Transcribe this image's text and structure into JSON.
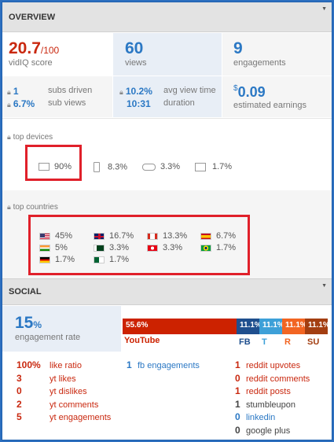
{
  "overview": {
    "header": "OVERVIEW",
    "vidiq_score": {
      "value": "20.7",
      "denom": "/100",
      "label": "vidIQ score"
    },
    "views": {
      "value": "60",
      "label": "views"
    },
    "engagements": {
      "value": "9",
      "label": "engagements"
    },
    "subs_driven": {
      "value": "1",
      "label": "subs driven"
    },
    "sub_views": {
      "value": "6.7%",
      "label": "sub views"
    },
    "avg_view_time": {
      "value": "10.2%",
      "label": "avg view time"
    },
    "duration": {
      "value": "10:31",
      "label": "duration"
    },
    "earnings": {
      "currency": "$",
      "value": "0.09",
      "label": "estimated earnings"
    }
  },
  "devices": {
    "label": "top devices",
    "items": [
      {
        "icon": "monitor-icon",
        "value": "90%"
      },
      {
        "icon": "phone-icon",
        "value": "8.3%"
      },
      {
        "icon": "gamepad-icon",
        "value": "3.3%"
      },
      {
        "icon": "tablet-icon",
        "value": "1.7%"
      }
    ]
  },
  "countries": {
    "label": "top countries",
    "items": [
      {
        "flag": "us-flag-icon",
        "value": "45%"
      },
      {
        "flag": "uk-flag-icon",
        "value": "16.7%"
      },
      {
        "flag": "ca-flag-icon",
        "value": "13.3%"
      },
      {
        "flag": "es-flag-icon",
        "value": "6.7%"
      },
      {
        "flag": "in-flag-icon",
        "value": "5%"
      },
      {
        "flag": "pk-flag-icon",
        "value": "3.3%"
      },
      {
        "flag": "tn-flag-icon",
        "value": "3.3%"
      },
      {
        "flag": "br-flag-icon",
        "value": "1.7%"
      },
      {
        "flag": "de-flag-icon",
        "value": "1.7%"
      },
      {
        "flag": "dz-flag-icon",
        "value": "1.7%"
      }
    ]
  },
  "social": {
    "header": "SOCIAL",
    "engagement_rate": {
      "value": "15",
      "unit": "%",
      "label": "engagement rate"
    },
    "bar": {
      "youtube": {
        "pct": "55.6%",
        "label": "YouTube",
        "color": "#cc2200",
        "fraction": 0.556
      },
      "fb": {
        "pct": "11.1%",
        "label": "FB",
        "color": "#1f4f8e",
        "fraction": 0.111
      },
      "t": {
        "pct": "11.1%",
        "label": "T",
        "color": "#3da0d8",
        "fraction": 0.111
      },
      "r": {
        "pct": "11.1%",
        "label": "R",
        "color": "#f26522",
        "fraction": 0.111
      },
      "su": {
        "pct": "11.1%",
        "label": "SU",
        "color": "#a33e11",
        "fraction": 0.111
      }
    },
    "youtube_stats": [
      {
        "value": "100%",
        "label": "like ratio"
      },
      {
        "value": "3",
        "label": "yt likes"
      },
      {
        "value": "0",
        "label": "yt dislikes"
      },
      {
        "value": "2",
        "label": "yt comments"
      },
      {
        "value": "5",
        "label": "yt engagements"
      }
    ],
    "fb_stats": [
      {
        "value": "1",
        "label": "fb engagements"
      }
    ],
    "other_stats": [
      {
        "value": "1",
        "label": "reddit upvotes",
        "kind": "red"
      },
      {
        "value": "0",
        "label": "reddit comments",
        "kind": "red"
      },
      {
        "value": "1",
        "label": "reddit posts",
        "kind": "red"
      },
      {
        "value": "1",
        "label": "stumbleupon",
        "kind": "dark"
      },
      {
        "value": "0",
        "label": "linkedin",
        "kind": "blue"
      },
      {
        "value": "0",
        "label": "google plus",
        "kind": "dark"
      }
    ]
  }
}
